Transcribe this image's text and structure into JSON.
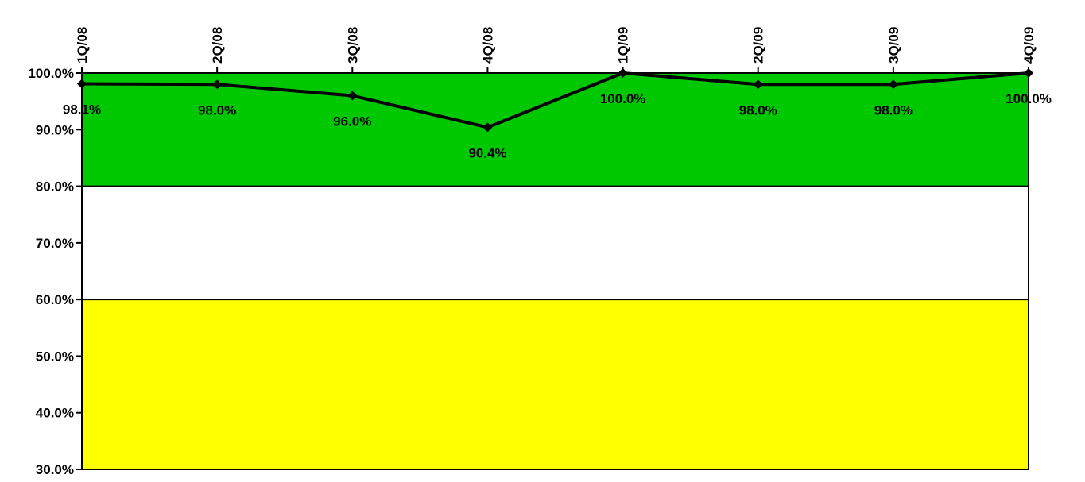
{
  "chart_data": {
    "type": "line",
    "title": "",
    "xlabel": "",
    "ylabel": "",
    "categories": [
      "1Q/08",
      "2Q/08",
      "3Q/08",
      "4Q/08",
      "1Q/09",
      "2Q/09",
      "3Q/09",
      "4Q/09"
    ],
    "series": [
      {
        "values": [
          98.1,
          98.0,
          96.0,
          90.4,
          100.0,
          98.0,
          98.0,
          100.0
        ],
        "labels": [
          "98.1%",
          "98.0%",
          "96.0%",
          "90.4%",
          "100.0%",
          "98.0%",
          "98.0%",
          "100.0%"
        ],
        "color": "#000000",
        "marker": "diamond"
      }
    ],
    "ylim": [
      30,
      100
    ],
    "y_ticks": [
      30,
      40,
      50,
      60,
      70,
      80,
      90,
      100
    ],
    "y_tick_labels": [
      "30.0%",
      "40.0%",
      "50.0%",
      "60.0%",
      "70.0%",
      "80.0%",
      "90.0%",
      "100.0%"
    ],
    "bands": [
      {
        "from": 80,
        "to": 100,
        "color": "#00c800"
      },
      {
        "from": 60,
        "to": 80,
        "color": "#ffffff"
      },
      {
        "from": 30,
        "to": 60,
        "color": "#ffff00"
      }
    ],
    "x_axis_position": "top",
    "x_tick_rotation": "vertical",
    "grid": false,
    "legend": "none"
  }
}
